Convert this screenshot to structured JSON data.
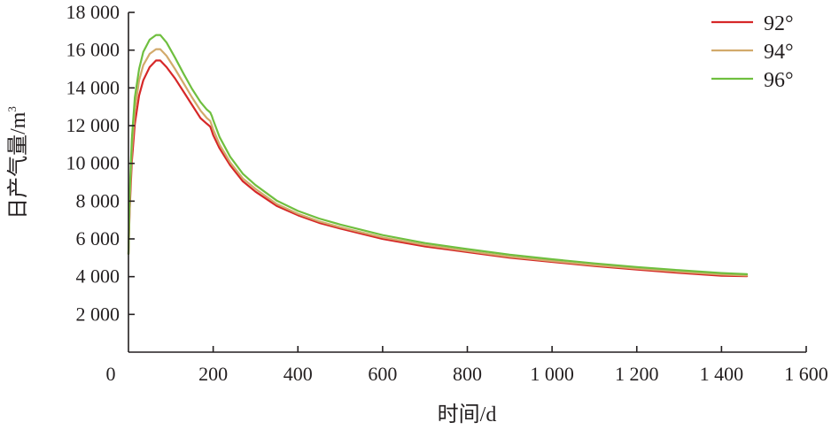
{
  "chart_data": {
    "type": "line",
    "title": "",
    "xlabel": "时间/d",
    "ylabel": "日产气量/m",
    "ylabel_superscript": "3",
    "xlim": [
      0,
      1600
    ],
    "ylim": [
      0,
      18000
    ],
    "x_ticks": [
      {
        "value": 0,
        "label": "0"
      },
      {
        "value": 200,
        "label": "200"
      },
      {
        "value": 400,
        "label": "400"
      },
      {
        "value": 600,
        "label": "600"
      },
      {
        "value": 800,
        "label": "800"
      },
      {
        "value": 1000,
        "label": "1 000"
      },
      {
        "value": 1200,
        "label": "1 200"
      },
      {
        "value": 1400,
        "label": "1 400"
      },
      {
        "value": 1600,
        "label": "1 600"
      }
    ],
    "y_ticks": [
      {
        "value": 2000,
        "label": "2 000"
      },
      {
        "value": 4000,
        "label": "4 000"
      },
      {
        "value": 6000,
        "label": "6 000"
      },
      {
        "value": 8000,
        "label": "8 000"
      },
      {
        "value": 10000,
        "label": "10 000"
      },
      {
        "value": 12000,
        "label": "12 000"
      },
      {
        "value": 14000,
        "label": "14 000"
      },
      {
        "value": 16000,
        "label": "16 000"
      },
      {
        "value": 18000,
        "label": "18 000"
      }
    ],
    "grid": false,
    "legend_position": "top-right",
    "series": [
      {
        "name": "92°",
        "color": "#d62728",
        "x": [
          0,
          3,
          8,
          15,
          25,
          35,
          50,
          65,
          75,
          90,
          110,
          130,
          150,
          170,
          185,
          193,
          197,
          200,
          215,
          240,
          270,
          300,
          350,
          400,
          450,
          500,
          600,
          700,
          800,
          900,
          1000,
          1100,
          1200,
          1300,
          1400,
          1460
        ],
        "y": [
          5200,
          7600,
          10100,
          12100,
          13600,
          14400,
          15100,
          15450,
          15450,
          15100,
          14500,
          13800,
          13100,
          12400,
          12100,
          11950,
          11700,
          11500,
          10800,
          9900,
          9050,
          8500,
          7750,
          7250,
          6850,
          6550,
          6000,
          5600,
          5300,
          5000,
          4780,
          4560,
          4380,
          4200,
          4050,
          4020
        ]
      },
      {
        "name": "94°",
        "color": "#d2aa6b",
        "x": [
          0,
          3,
          8,
          15,
          25,
          35,
          50,
          65,
          75,
          90,
          110,
          130,
          150,
          170,
          185,
          193,
          197,
          200,
          215,
          240,
          270,
          300,
          350,
          400,
          450,
          500,
          600,
          700,
          800,
          900,
          1000,
          1100,
          1200,
          1300,
          1400,
          1460
        ],
        "y": [
          5200,
          8000,
          10700,
          12800,
          14400,
          15200,
          15800,
          16050,
          16050,
          15700,
          15000,
          14250,
          13500,
          12800,
          12400,
          12250,
          12000,
          11800,
          11000,
          10050,
          9200,
          8650,
          7850,
          7330,
          6930,
          6620,
          6080,
          5680,
          5360,
          5060,
          4830,
          4610,
          4430,
          4260,
          4110,
          4060
        ]
      },
      {
        "name": "96°",
        "color": "#6fbf3f",
        "x": [
          0,
          3,
          8,
          15,
          25,
          35,
          50,
          65,
          75,
          90,
          110,
          130,
          150,
          170,
          185,
          193,
          197,
          200,
          215,
          240,
          270,
          300,
          350,
          400,
          450,
          500,
          600,
          700,
          800,
          900,
          1000,
          1100,
          1200,
          1300,
          1400,
          1460
        ],
        "y": [
          5200,
          8400,
          11300,
          13500,
          15000,
          15900,
          16550,
          16800,
          16800,
          16400,
          15600,
          14750,
          13950,
          13250,
          12850,
          12700,
          12500,
          12300,
          11400,
          10350,
          9450,
          8850,
          8030,
          7480,
          7080,
          6760,
          6200,
          5780,
          5460,
          5160,
          4920,
          4700,
          4510,
          4340,
          4190,
          4130
        ]
      }
    ]
  }
}
